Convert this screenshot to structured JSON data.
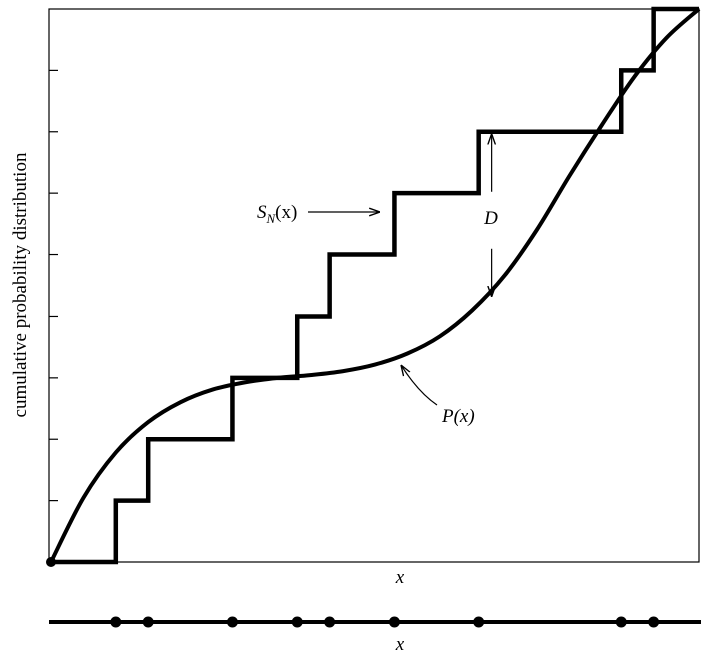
{
  "chart_data": {
    "type": "line",
    "ylabel": "cumulative probability distribution",
    "xlabel": "x",
    "bottom_axis_label": "x",
    "xlim": [
      0,
      10
    ],
    "ylim": [
      0,
      1
    ],
    "yticks": [
      0.111,
      0.222,
      0.333,
      0.444,
      0.556,
      0.667,
      0.778,
      0.889
    ],
    "series": [
      {
        "name": "S_N(x)",
        "kind": "step",
        "x": [
          0,
          1.0,
          1.5,
          2.8,
          3.8,
          4.3,
          5.3,
          6.6,
          8.8,
          9.3,
          10
        ],
        "y": [
          0,
          0.111,
          0.222,
          0.333,
          0.444,
          0.556,
          0.667,
          0.778,
          0.889,
          1.0,
          1.0
        ]
      },
      {
        "name": "P(x)",
        "kind": "curve",
        "x": [
          0,
          0.5,
          1.0,
          1.5,
          2.0,
          2.5,
          3.0,
          3.5,
          4.0,
          4.5,
          5.0,
          5.5,
          6.0,
          6.5,
          7.0,
          7.5,
          8.0,
          8.5,
          9.0,
          9.5,
          10.0
        ],
        "y": [
          0,
          0.116,
          0.198,
          0.253,
          0.289,
          0.312,
          0.325,
          0.333,
          0.338,
          0.345,
          0.357,
          0.377,
          0.408,
          0.455,
          0.518,
          0.601,
          0.698,
          0.79,
          0.877,
          0.948,
          1.0
        ]
      }
    ],
    "sample_points_x": [
      1.0,
      1.5,
      2.8,
      3.8,
      4.3,
      5.3,
      6.6,
      8.8,
      9.3
    ],
    "annotations": {
      "sn_label": "S",
      "sn_subscript": "N",
      "sn_arg": "(x)",
      "pn_label": "P(x)",
      "d_label": "D",
      "d_x": 6.8,
      "d_y_low": 0.476,
      "d_y_high": 0.778
    }
  }
}
